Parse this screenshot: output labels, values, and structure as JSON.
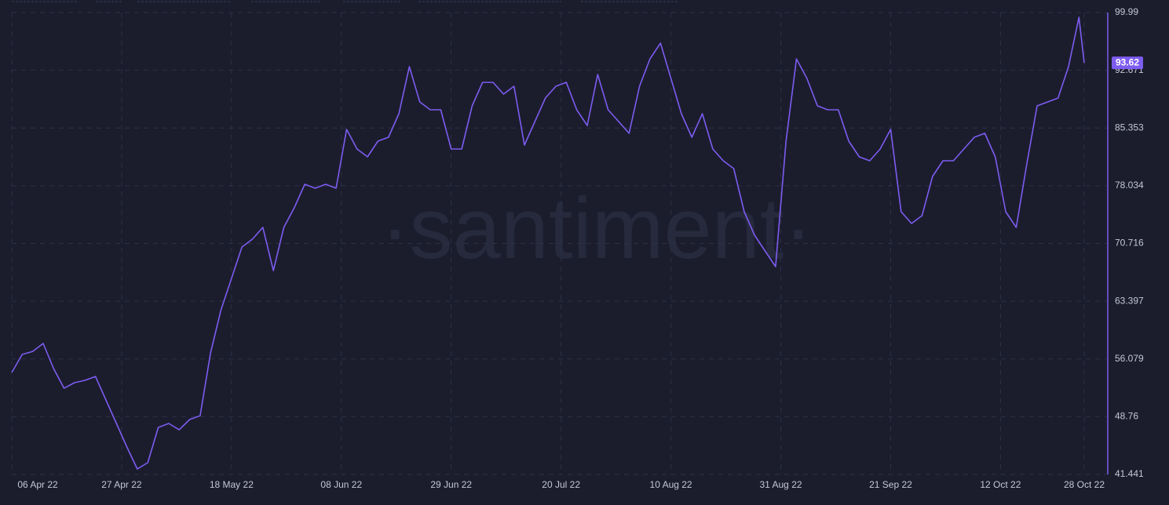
{
  "chart_data": {
    "type": "line",
    "watermark": "·santiment·",
    "color": "#7d5cf0",
    "grid": true,
    "ylim": [
      41.441,
      99.99
    ],
    "yticks": [
      41.441,
      48.76,
      56.079,
      63.397,
      70.716,
      78.034,
      85.353,
      92.671,
      99.99
    ],
    "xticks": [
      "06 Apr 22",
      "27 Apr 22",
      "18 May 22",
      "08 Jun 22",
      "29 Jun 22",
      "20 Jul 22",
      "10 Aug 22",
      "31 Aug 22",
      "21 Sep 22",
      "12 Oct 22",
      "28 Oct 22"
    ],
    "x": [
      "06 Apr 22",
      "08 Apr 22",
      "10 Apr 22",
      "12 Apr 22",
      "14 Apr 22",
      "16 Apr 22",
      "18 Apr 22",
      "20 Apr 22",
      "22 Apr 22",
      "24 Apr 22",
      "26 Apr 22",
      "28 Apr 22",
      "30 Apr 22",
      "02 May 22",
      "04 May 22",
      "06 May 22",
      "08 May 22",
      "10 May 22",
      "12 May 22",
      "14 May 22",
      "16 May 22",
      "18 May 22",
      "20 May 22",
      "22 May 22",
      "24 May 22",
      "26 May 22",
      "28 May 22",
      "30 May 22",
      "01 Jun 22",
      "03 Jun 22",
      "05 Jun 22",
      "07 Jun 22",
      "09 Jun 22",
      "11 Jun 22",
      "13 Jun 22",
      "15 Jun 22",
      "17 Jun 22",
      "19 Jun 22",
      "21 Jun 22",
      "23 Jun 22",
      "25 Jun 22",
      "27 Jun 22",
      "29 Jun 22",
      "01 Jul 22",
      "03 Jul 22",
      "05 Jul 22",
      "07 Jul 22",
      "09 Jul 22",
      "11 Jul 22",
      "13 Jul 22",
      "15 Jul 22",
      "17 Jul 22",
      "19 Jul 22",
      "21 Jul 22",
      "23 Jul 22",
      "25 Jul 22",
      "27 Jul 22",
      "29 Jul 22",
      "31 Jul 22",
      "02 Aug 22",
      "04 Aug 22",
      "06 Aug 22",
      "08 Aug 22",
      "10 Aug 22",
      "12 Aug 22",
      "14 Aug 22",
      "16 Aug 22",
      "18 Aug 22",
      "20 Aug 22",
      "22 Aug 22",
      "24 Aug 22",
      "26 Aug 22",
      "28 Aug 22",
      "30 Aug 22",
      "01 Sep 22",
      "03 Sep 22",
      "05 Sep 22",
      "07 Sep 22",
      "09 Sep 22",
      "11 Sep 22",
      "13 Sep 22",
      "15 Sep 22",
      "17 Sep 22",
      "19 Sep 22",
      "21 Sep 22",
      "23 Sep 22",
      "25 Sep 22",
      "27 Sep 22",
      "29 Sep 22",
      "01 Oct 22",
      "03 Oct 22",
      "05 Oct 22",
      "07 Oct 22",
      "09 Oct 22",
      "11 Oct 22",
      "13 Oct 22",
      "15 Oct 22",
      "17 Oct 22",
      "19 Oct 22",
      "21 Oct 22",
      "23 Oct 22",
      "25 Oct 22",
      "27 Oct 22",
      "28 Oct 22"
    ],
    "values": [
      54.36,
      56.65,
      57.04,
      58.04,
      54.86,
      52.37,
      53.07,
      53.37,
      53.86,
      50.88,
      47.9,
      44.92,
      42.13,
      42.93,
      47.4,
      47.9,
      47.1,
      48.4,
      48.89,
      56.85,
      62.31,
      66.29,
      70.27,
      71.26,
      72.75,
      67.28,
      72.75,
      75.24,
      78.22,
      77.72,
      78.22,
      77.72,
      85.18,
      82.69,
      81.7,
      83.69,
      84.18,
      87.17,
      93.13,
      88.66,
      87.66,
      87.66,
      82.69,
      82.69,
      88.16,
      91.14,
      91.14,
      89.65,
      90.65,
      83.19,
      86.17,
      89.15,
      90.65,
      91.14,
      87.66,
      85.67,
      92.14,
      87.66,
      86.17,
      84.68,
      90.65,
      94.12,
      96.11,
      91.64,
      87.17,
      84.18,
      87.17,
      82.69,
      81.2,
      80.21,
      74.74,
      71.76,
      69.77,
      67.78,
      83.69,
      94.12,
      91.64,
      88.16,
      87.66,
      87.66,
      83.69,
      81.7,
      81.2,
      82.69,
      85.18,
      74.74,
      73.25,
      74.24,
      79.21,
      81.2,
      81.2,
      82.69,
      84.18,
      84.68,
      81.7,
      74.74,
      72.75,
      80.7,
      88.16,
      88.66,
      89.15,
      93.13,
      99.39,
      93.62
    ]
  }
}
